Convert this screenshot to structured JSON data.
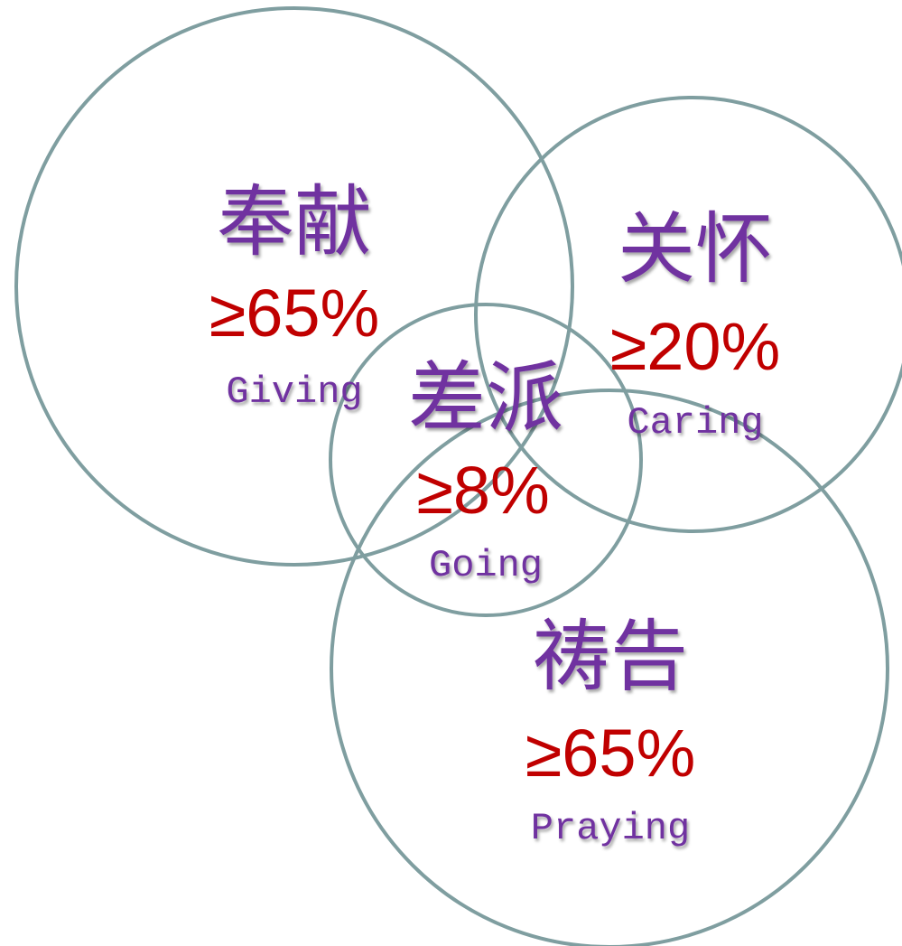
{
  "colors": {
    "circle_stroke": "#7f9ea0",
    "chinese_text": "#7030a0",
    "percent_text": "#c00000",
    "english_text": "#7030a0",
    "background": "#ffffff"
  },
  "items": {
    "giving": {
      "chinese": "奉献",
      "percent": "≥65%",
      "english": "Giving"
    },
    "caring": {
      "chinese": "关怀",
      "percent": "≥20%",
      "english": "Caring"
    },
    "going": {
      "chinese": "差派",
      "percent": "≥8%",
      "english": "Going"
    },
    "praying": {
      "chinese": "祷告",
      "percent": "≥65%",
      "english": "Praying"
    }
  }
}
